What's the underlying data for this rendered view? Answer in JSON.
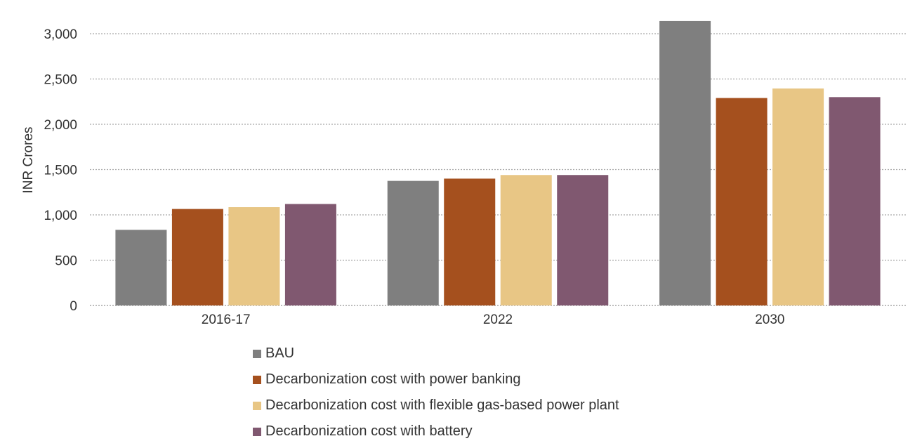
{
  "chart_data": {
    "type": "bar",
    "title": "",
    "xlabel": "",
    "ylabel": "INR Crores",
    "ylim": [
      0,
      3000
    ],
    "yticks": [
      "0",
      "500",
      "1,000",
      "1,500",
      "2,000",
      "2,500",
      "3,000"
    ],
    "ytick_values": [
      0,
      500,
      1000,
      1500,
      2000,
      2500,
      3000
    ],
    "grid": true,
    "legend_position": "bottom",
    "categories": [
      "2016-17",
      "2022",
      "2030"
    ],
    "series": [
      {
        "name": "BAU",
        "color": "#7f7f7f",
        "values": [
          835,
          1375,
          3140
        ]
      },
      {
        "name": "Decarbonization cost with power banking",
        "color": "#a5501e",
        "values": [
          1065,
          1400,
          2290
        ]
      },
      {
        "name": "Decarbonization cost with flexible gas-based power plant",
        "color": "#e8c685",
        "values": [
          1085,
          1440,
          2395
        ]
      },
      {
        "name": "Decarbonization cost with battery",
        "color": "#805870",
        "values": [
          1120,
          1440,
          2300
        ]
      }
    ]
  }
}
